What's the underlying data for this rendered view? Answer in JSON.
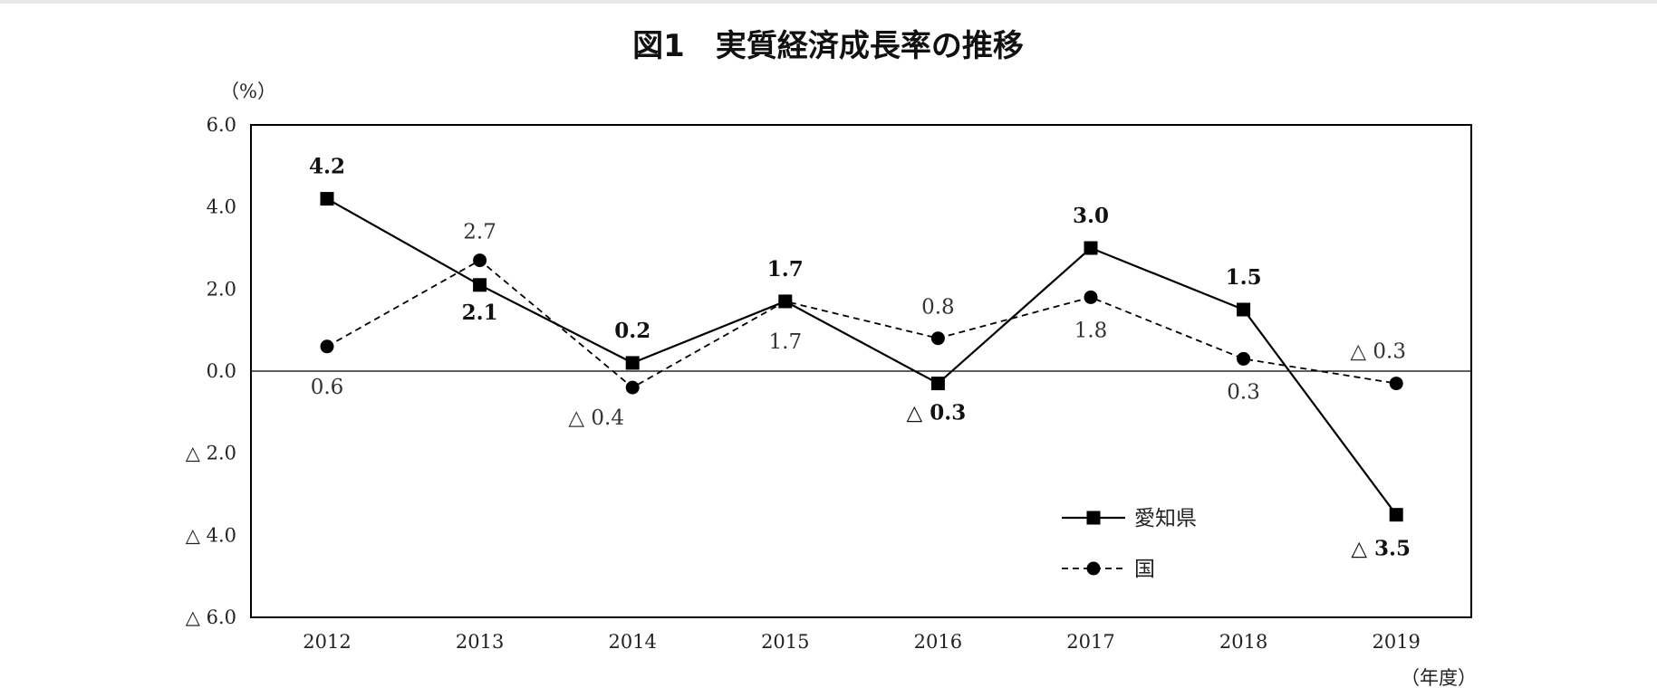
{
  "chart_data": {
    "type": "line",
    "title": "図1　実質経済成長率の推移",
    "ylabel": "（%）",
    "xlabel": "（年度）",
    "categories": [
      "2012",
      "2013",
      "2014",
      "2015",
      "2016",
      "2017",
      "2018",
      "2019"
    ],
    "ylim": [
      -6.0,
      6.0
    ],
    "yticks": [
      6.0,
      4.0,
      2.0,
      0.0,
      -2.0,
      -4.0,
      -6.0
    ],
    "ytick_labels": [
      "6.0",
      "4.0",
      "2.0",
      "0.0",
      "△ 2.0",
      "△ 4.0",
      "△ 6.0"
    ],
    "grid": false,
    "legend_position": "bottom-right",
    "series": [
      {
        "name": "愛知県",
        "style": "solid",
        "marker": "square",
        "color": "#000000",
        "values": [
          4.2,
          2.1,
          0.2,
          1.7,
          -0.3,
          3.0,
          1.5,
          -3.5
        ],
        "data_labels": [
          "4.2",
          "2.1",
          "0.2",
          "1.7",
          "△ 0.3",
          "3.0",
          "1.5",
          "△ 3.5"
        ]
      },
      {
        "name": "国",
        "style": "dashed",
        "marker": "circle",
        "color": "#000000",
        "values": [
          0.6,
          2.7,
          -0.4,
          1.7,
          0.8,
          1.8,
          0.3,
          -0.3
        ],
        "data_labels": [
          "0.6",
          "2.7",
          "△ 0.4",
          "1.7",
          "0.8",
          "1.8",
          "0.3",
          "△ 0.3"
        ]
      }
    ]
  }
}
